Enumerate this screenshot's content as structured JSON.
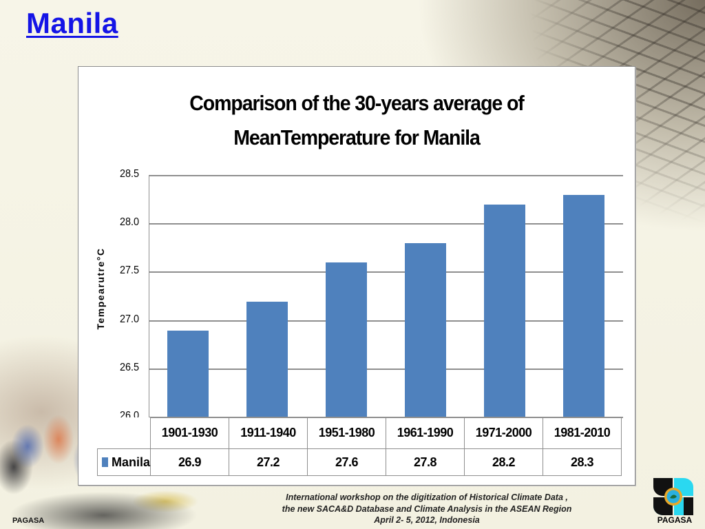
{
  "slide": {
    "title": "Manila",
    "footer_lines": [
      "International workshop on the digitization of Historical Climate Data ,",
      "the new SACA&D Database and Climate Analysis  in the ASEAN Region",
      "April 2- 5, 2012, Indonesia"
    ],
    "watermark_left": "PAGASA",
    "logo_label": "PAGASA",
    "logo_icon": "pagasa-logo-icon"
  },
  "colors": {
    "title": "#1414e6",
    "bar": "#4f81bd",
    "gridline": "#8e8e8e"
  },
  "chart_data": {
    "type": "bar",
    "title": "Comparison of the 30-years average of MeanTemperature for Manila",
    "title_lines": [
      "Comparison of the 30-years average of",
      "MeanTemperature for Manila"
    ],
    "xlabel": "",
    "ylabel": "Tempearutre°C",
    "ylim": [
      26.0,
      28.5
    ],
    "yticks": [
      "28.5",
      "28.0",
      "27.5",
      "27.0",
      "26.5",
      "26.0"
    ],
    "grid": true,
    "legend_position": "data-table",
    "categories": [
      "1901-1930",
      "1911-1940",
      "1951-1980",
      "1961-1990",
      "1971-2000",
      "1981-2010"
    ],
    "series": [
      {
        "name": "Manila",
        "values": [
          26.9,
          27.2,
          27.6,
          27.8,
          28.2,
          28.3
        ]
      }
    ],
    "value_labels": [
      "26.9",
      "27.2",
      "27.6",
      "27.8",
      "28.2",
      "28.3"
    ]
  }
}
